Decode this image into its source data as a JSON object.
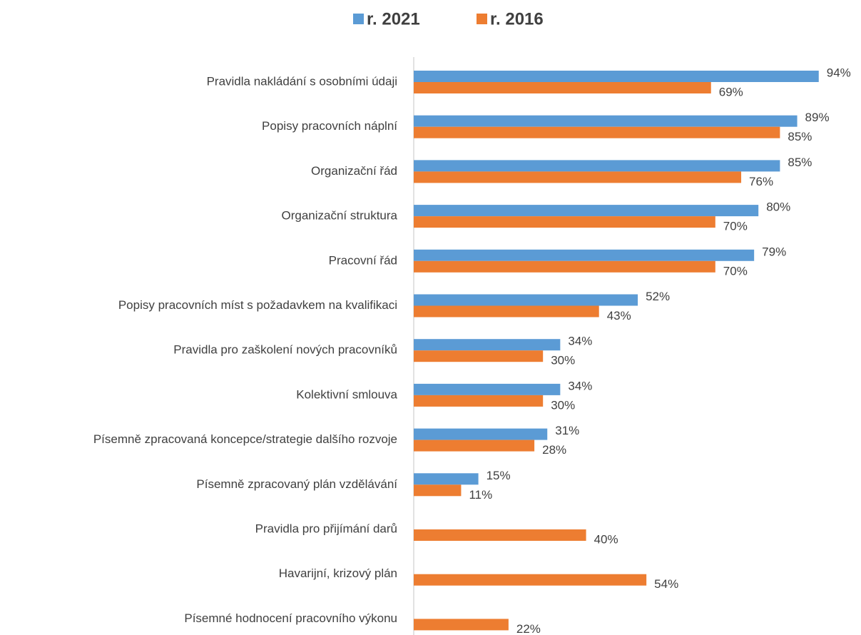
{
  "chart_data": {
    "type": "hbar",
    "categories": [
      "Pravidla nakládání s osobními údaji",
      "Popisy pracovních náplní",
      "Organizační řád",
      "Organizační struktura",
      "Pracovní řád",
      "Popisy pracovních míst s požadavkem na kvalifikaci",
      "Pravidla pro zaškolení nových pracovníků",
      "Kolektivní smlouva",
      "Písemně zpracovaná koncepce/strategie dalšího rozvoje",
      "Písemně zpracovaný plán vzdělávání",
      "Pravidla pro přijímání darů",
      "Havarijní, krizový plán",
      "Písemné hodnocení pracovního výkonu"
    ],
    "series": [
      {
        "name": "r. 2021",
        "color": "#5b9bd5",
        "values": [
          94,
          89,
          85,
          80,
          79,
          52,
          34,
          34,
          31,
          15,
          null,
          null,
          null
        ],
        "value_labels": [
          "94%",
          "89%",
          "85%",
          "80%",
          "79%",
          "52%",
          "34%",
          "34%",
          "31%",
          "15%",
          null,
          null,
          null
        ]
      },
      {
        "name": "r. 2016",
        "color": "#ed7d31",
        "values": [
          69,
          85,
          76,
          70,
          70,
          43,
          30,
          30,
          28,
          11,
          40,
          54,
          22
        ],
        "value_labels": [
          "69%",
          "85%",
          "76%",
          "70%",
          "70%",
          "43%",
          "30%",
          "30%",
          "28%",
          "11%",
          "40%",
          "54%",
          "22%"
        ]
      }
    ],
    "xlim": [
      0,
      100
    ],
    "legend": "top"
  }
}
